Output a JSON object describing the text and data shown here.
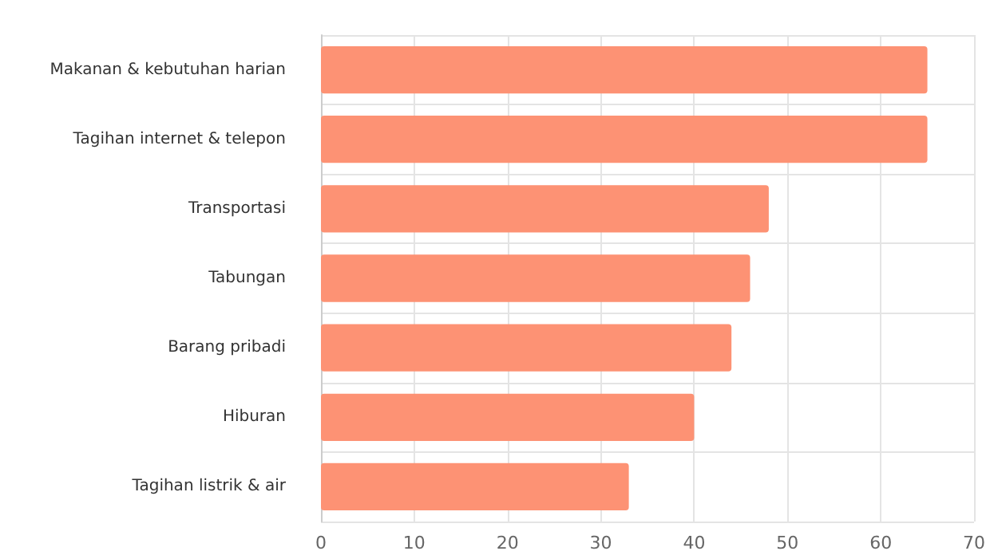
{
  "chart_data": {
    "type": "bar",
    "orientation": "horizontal",
    "categories": [
      "Makanan & kebutuhan harian",
      "Tagihan internet & telepon",
      "Transportasi",
      "Tabungan",
      "Barang pribadi",
      "Hiburan",
      "Tagihan listrik & air"
    ],
    "values": [
      65,
      65,
      48,
      46,
      44,
      40,
      33
    ],
    "color": "#fd9274",
    "xlim": [
      0,
      70
    ],
    "xticks": [
      0,
      10,
      20,
      30,
      40,
      50,
      60,
      70
    ],
    "grid": true
  }
}
